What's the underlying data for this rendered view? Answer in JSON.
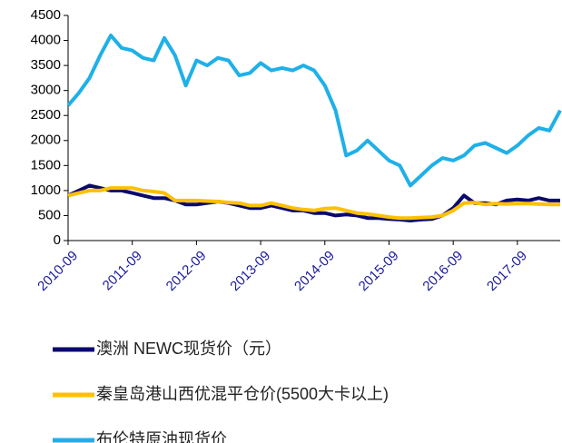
{
  "chart_data": {
    "type": "line",
    "x": [
      "2010-09",
      "2010-11",
      "2011-01",
      "2011-03",
      "2011-05",
      "2011-07",
      "2011-09",
      "2011-11",
      "2012-01",
      "2012-03",
      "2012-05",
      "2012-07",
      "2012-09",
      "2012-11",
      "2013-01",
      "2013-03",
      "2013-05",
      "2013-07",
      "2013-09",
      "2013-11",
      "2014-01",
      "2014-03",
      "2014-05",
      "2014-07",
      "2014-09",
      "2014-11",
      "2015-01",
      "2015-03",
      "2015-05",
      "2015-07",
      "2015-09",
      "2015-11",
      "2016-01",
      "2016-03",
      "2016-05",
      "2016-07",
      "2016-09",
      "2016-11",
      "2017-01",
      "2017-03",
      "2017-05",
      "2017-07",
      "2017-09",
      "2017-11",
      "2018-01",
      "2018-03",
      "2018-05"
    ],
    "series": [
      {
        "name": "澳洲 NEWC现货价（元）",
        "color": "#0a0a6e",
        "values": [
          900,
          1000,
          1100,
          1050,
          1000,
          1000,
          950,
          900,
          850,
          850,
          800,
          720,
          720,
          750,
          780,
          750,
          700,
          650,
          650,
          700,
          650,
          600,
          600,
          550,
          550,
          500,
          520,
          500,
          450,
          450,
          430,
          420,
          400,
          420,
          430,
          500,
          650,
          900,
          750,
          750,
          720,
          800,
          820,
          800,
          850,
          800,
          800
        ]
      },
      {
        "name": "秦皇岛港山西优混平仓价(5500大卡以上)",
        "color": "#ffc000",
        "values": [
          900,
          950,
          1000,
          1000,
          1050,
          1050,
          1050,
          1000,
          980,
          950,
          800,
          800,
          800,
          790,
          780,
          760,
          750,
          700,
          700,
          750,
          700,
          650,
          620,
          600,
          640,
          650,
          600,
          550,
          530,
          500,
          470,
          450,
          450,
          460,
          470,
          500,
          600,
          750,
          760,
          720,
          740,
          730,
          740,
          740,
          730,
          720,
          720
        ]
      },
      {
        "name": "布伦特原油现货价",
        "color": "#1fb0e8",
        "values": [
          2700,
          2950,
          3250,
          3700,
          4100,
          3850,
          3800,
          3650,
          3600,
          4050,
          3700,
          3100,
          3600,
          3500,
          3650,
          3600,
          3300,
          3350,
          3550,
          3400,
          3450,
          3400,
          3500,
          3400,
          3100,
          2600,
          1700,
          1800,
          2000,
          1800,
          1600,
          1500,
          1100,
          1300,
          1500,
          1650,
          1600,
          1700,
          1900,
          1950,
          1850,
          1750,
          1900,
          2100,
          2250,
          2200,
          2600
        ]
      }
    ],
    "xticks": [
      "2010-09",
      "2011-09",
      "2012-09",
      "2013-09",
      "2014-09",
      "2015-09",
      "2016-09",
      "2017-09"
    ],
    "ylim": [
      0,
      4500
    ],
    "yticks": [
      0,
      500,
      1000,
      1500,
      2000,
      2500,
      3000,
      3500,
      4000,
      4500
    ]
  }
}
